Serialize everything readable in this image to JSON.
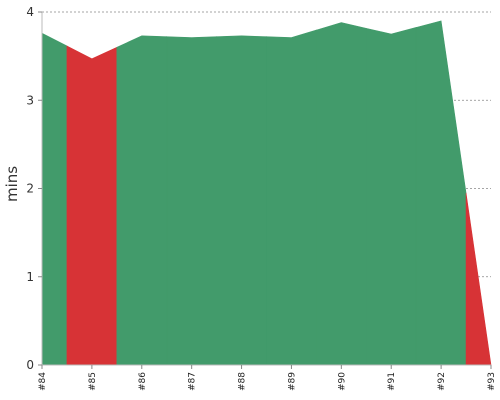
{
  "chart_data": {
    "type": "area",
    "title": "",
    "xlabel": "",
    "ylabel": "mins",
    "categories": [
      "#84",
      "#85",
      "#86",
      "#87",
      "#88",
      "#89",
      "#90",
      "#91",
      "#92",
      "#93"
    ],
    "values": [
      3.76,
      3.47,
      3.73,
      3.71,
      3.73,
      3.71,
      3.88,
      3.75,
      3.9,
      0.0
    ],
    "status": [
      "pass",
      "fail",
      "pass",
      "pass",
      "pass",
      "pass",
      "pass",
      "pass",
      "pass",
      "fail"
    ],
    "ylim": [
      0,
      4
    ],
    "yticks": [
      0,
      1,
      2,
      3,
      4
    ],
    "grid": true,
    "colors": {
      "pass": "#429b6b",
      "fail": "#d73336"
    }
  }
}
